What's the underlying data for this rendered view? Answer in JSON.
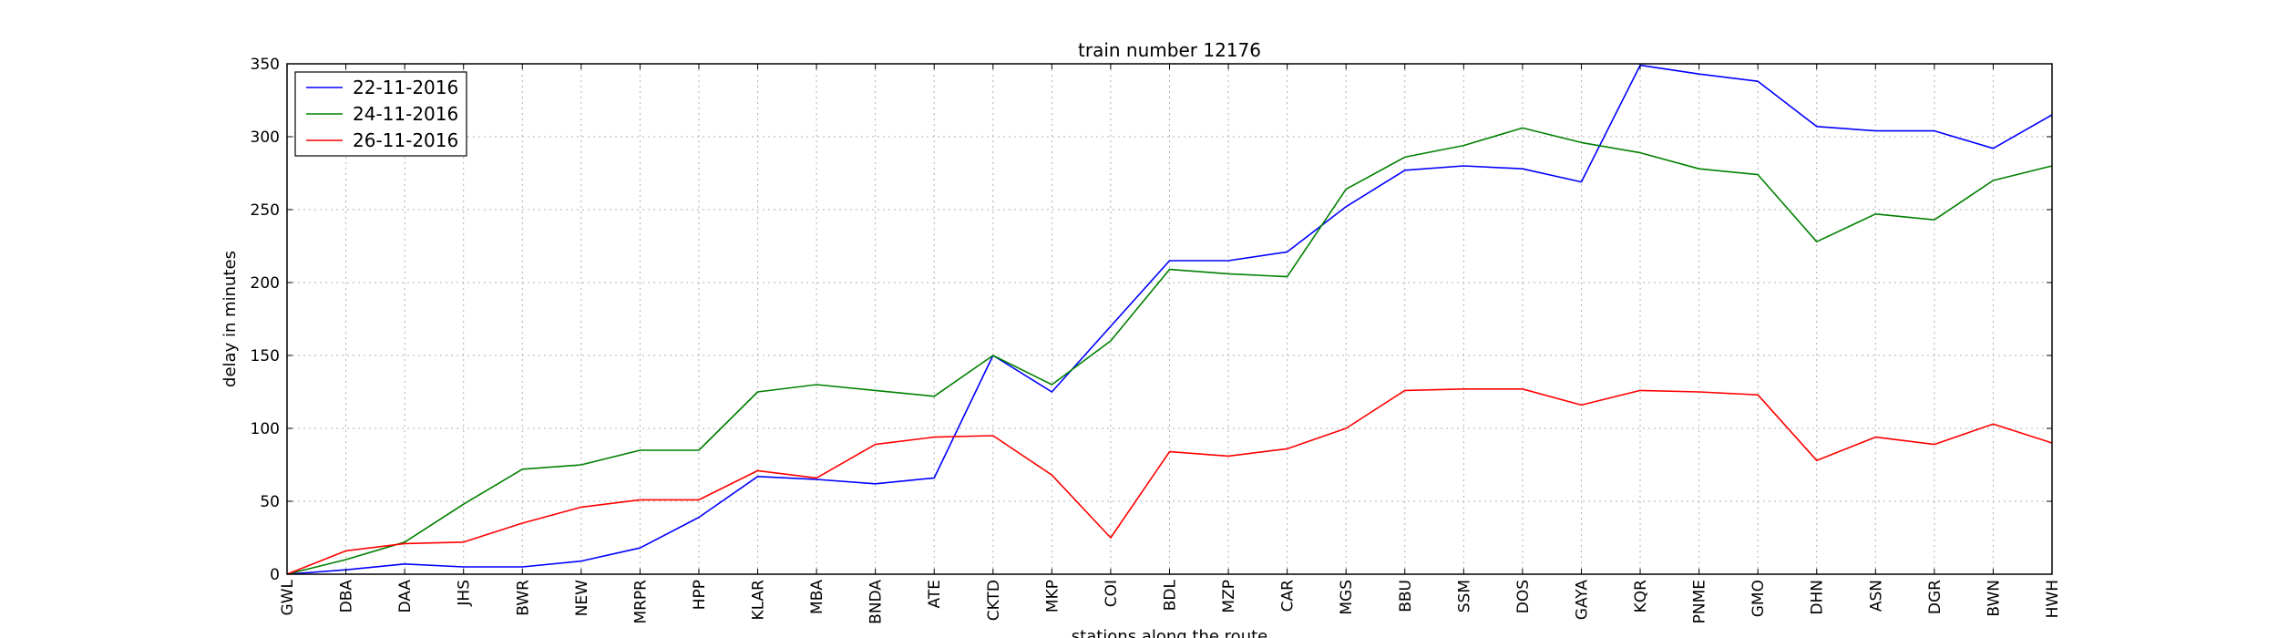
{
  "chart_data": {
    "type": "line",
    "title": "train number 12176",
    "xlabel": "stations along the route",
    "ylabel": "delay in minutes",
    "ylim": [
      0,
      350
    ],
    "yticks": [
      0,
      50,
      100,
      150,
      200,
      250,
      300,
      350
    ],
    "grid": true,
    "legend_position": "top-left",
    "categories": [
      "GWL",
      "DBA",
      "DAA",
      "JHS",
      "BWR",
      "NEW",
      "MRPR",
      "HPP",
      "KLAR",
      "MBA",
      "BNDA",
      "ATE",
      "CKTD",
      "MKP",
      "COI",
      "BDL",
      "MZP",
      "CAR",
      "MGS",
      "BBU",
      "SSM",
      "DOS",
      "GAYA",
      "KQR",
      "PNME",
      "GMO",
      "DHN",
      "ASN",
      "DGR",
      "BWN",
      "HWH"
    ],
    "series": [
      {
        "name": "22-11-2016",
        "color": "#0000ff",
        "values": [
          0,
          3,
          7,
          5,
          5,
          9,
          18,
          39,
          67,
          65,
          62,
          66,
          150,
          125,
          170,
          215,
          215,
          221,
          252,
          277,
          280,
          278,
          269,
          349,
          343,
          338,
          307,
          304,
          304,
          292,
          315
        ]
      },
      {
        "name": "24-11-2016",
        "color": "#008000",
        "values": [
          0,
          10,
          22,
          48,
          72,
          75,
          85,
          85,
          125,
          130,
          126,
          122,
          150,
          130,
          160,
          209,
          206,
          204,
          264,
          286,
          294,
          306,
          296,
          289,
          278,
          274,
          228,
          247,
          243,
          270,
          280
        ]
      },
      {
        "name": "26-11-2016",
        "color": "#ff0000",
        "values": [
          0,
          16,
          21,
          22,
          35,
          46,
          51,
          51,
          71,
          66,
          89,
          94,
          95,
          68,
          25,
          84,
          81,
          86,
          100,
          126,
          127,
          127,
          116,
          126,
          125,
          123,
          78,
          94,
          89,
          103,
          90
        ]
      }
    ]
  }
}
